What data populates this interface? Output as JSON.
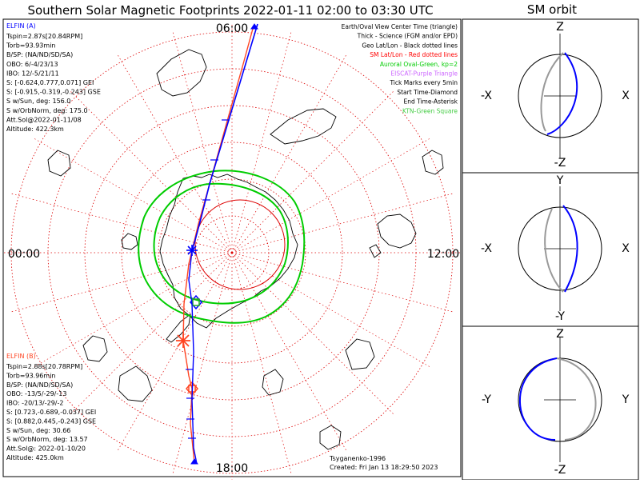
{
  "title": "Southern Solar Magnetic Footprints 2022-01-11 02:00 to 03:30 UTC",
  "orbit_title": "SM orbit",
  "clock_labels": {
    "top": "06:00",
    "left": "00:00",
    "right": "12:00",
    "bottom": "18:00"
  },
  "legend": [
    {
      "text": "Earth/Oval View Center Time (triangle)",
      "color": "#000000"
    },
    {
      "text": "Thick - Science (FGM and/or EPD)",
      "color": "#000000"
    },
    {
      "text": "Geo Lat/Lon - Black dotted lines",
      "color": "#000000"
    },
    {
      "text": "SM Lat/Lon - Red dotted lines",
      "color": "#ff0000"
    },
    {
      "text": "Auroral Oval-Green, kp=2",
      "color": "#00cc00"
    },
    {
      "text": "EISCAT-Purple Triangle",
      "color": "#cc66ff"
    },
    {
      "text": "Tick Marks every 5min",
      "color": "#000000"
    },
    {
      "text": "Start Time-Diamond",
      "color": "#000000"
    },
    {
      "text": "End Time-Asterisk",
      "color": "#000000"
    },
    {
      "text": "KTN-Green Square",
      "color": "#44cc44"
    }
  ],
  "elfin_a": {
    "name": "ELFIN (A)",
    "color": "#0000ff",
    "lines": [
      "Tspin=2.87s[20.84RPM]",
      "Torb=93.93min",
      "B/SP: (NA/ND/SD/SA)",
      "OBO: 6/-4/23/13",
      "IBO: 12/-5/21/11",
      "S: [-0.624,0.777,0.071] GEI",
      "S: [-0.915,-0.319,-0.243] GSE",
      "S w/Sun, deg: 156.0",
      "S w/OrbNorm, deg: 175.0",
      "Att.Sol@2022-01-11/08",
      "Altitude: 422.3km"
    ]
  },
  "elfin_b": {
    "name": "ELFIN (B)",
    "color": "#ff4422",
    "lines": [
      "Tspin=2.88s[20.78RPM]",
      "Torb=93.96min",
      "B/SP: (NA/ND/SD/SA)",
      "OBO: -13/5/-29/-13",
      "IBO: -20/13/-29/-2",
      "S: [0.723,-0.689,-0.037] GEI",
      "S: [0.882,0.445,-0.243] GSE",
      "S w/Sun, deg: 30.66",
      "S w/OrbNorm, deg: 13.57",
      "Att.Sol@: 2022-01-10/20",
      "Altitude: 425.0km"
    ]
  },
  "credits": {
    "model": "Tsyganenko-1996",
    "created": "Created: Fri Jan 13 18:29:50 2023"
  },
  "orbit_panels": [
    {
      "top": "Z",
      "bottom": "-Z",
      "left": "-X",
      "right": "X"
    },
    {
      "top": "Y",
      "bottom": "-Y",
      "left": "-X",
      "right": "X"
    },
    {
      "top": "Z",
      "bottom": "-Z",
      "left": "-Y",
      "right": "Y"
    }
  ],
  "chart_data": {
    "type": "polar-map",
    "projection": "southern hemisphere, SM coordinates",
    "time_range": [
      "2022-01-11 02:00",
      "2022-01-11 03:30"
    ],
    "colors": {
      "elfin_a": "#0000ff",
      "elfin_b": "#ff4422",
      "auroral_oval": "#00cc00",
      "sm_grid": "#dd0000",
      "geo_grid": "#000000",
      "orbit_gray": "#999999"
    }
  }
}
